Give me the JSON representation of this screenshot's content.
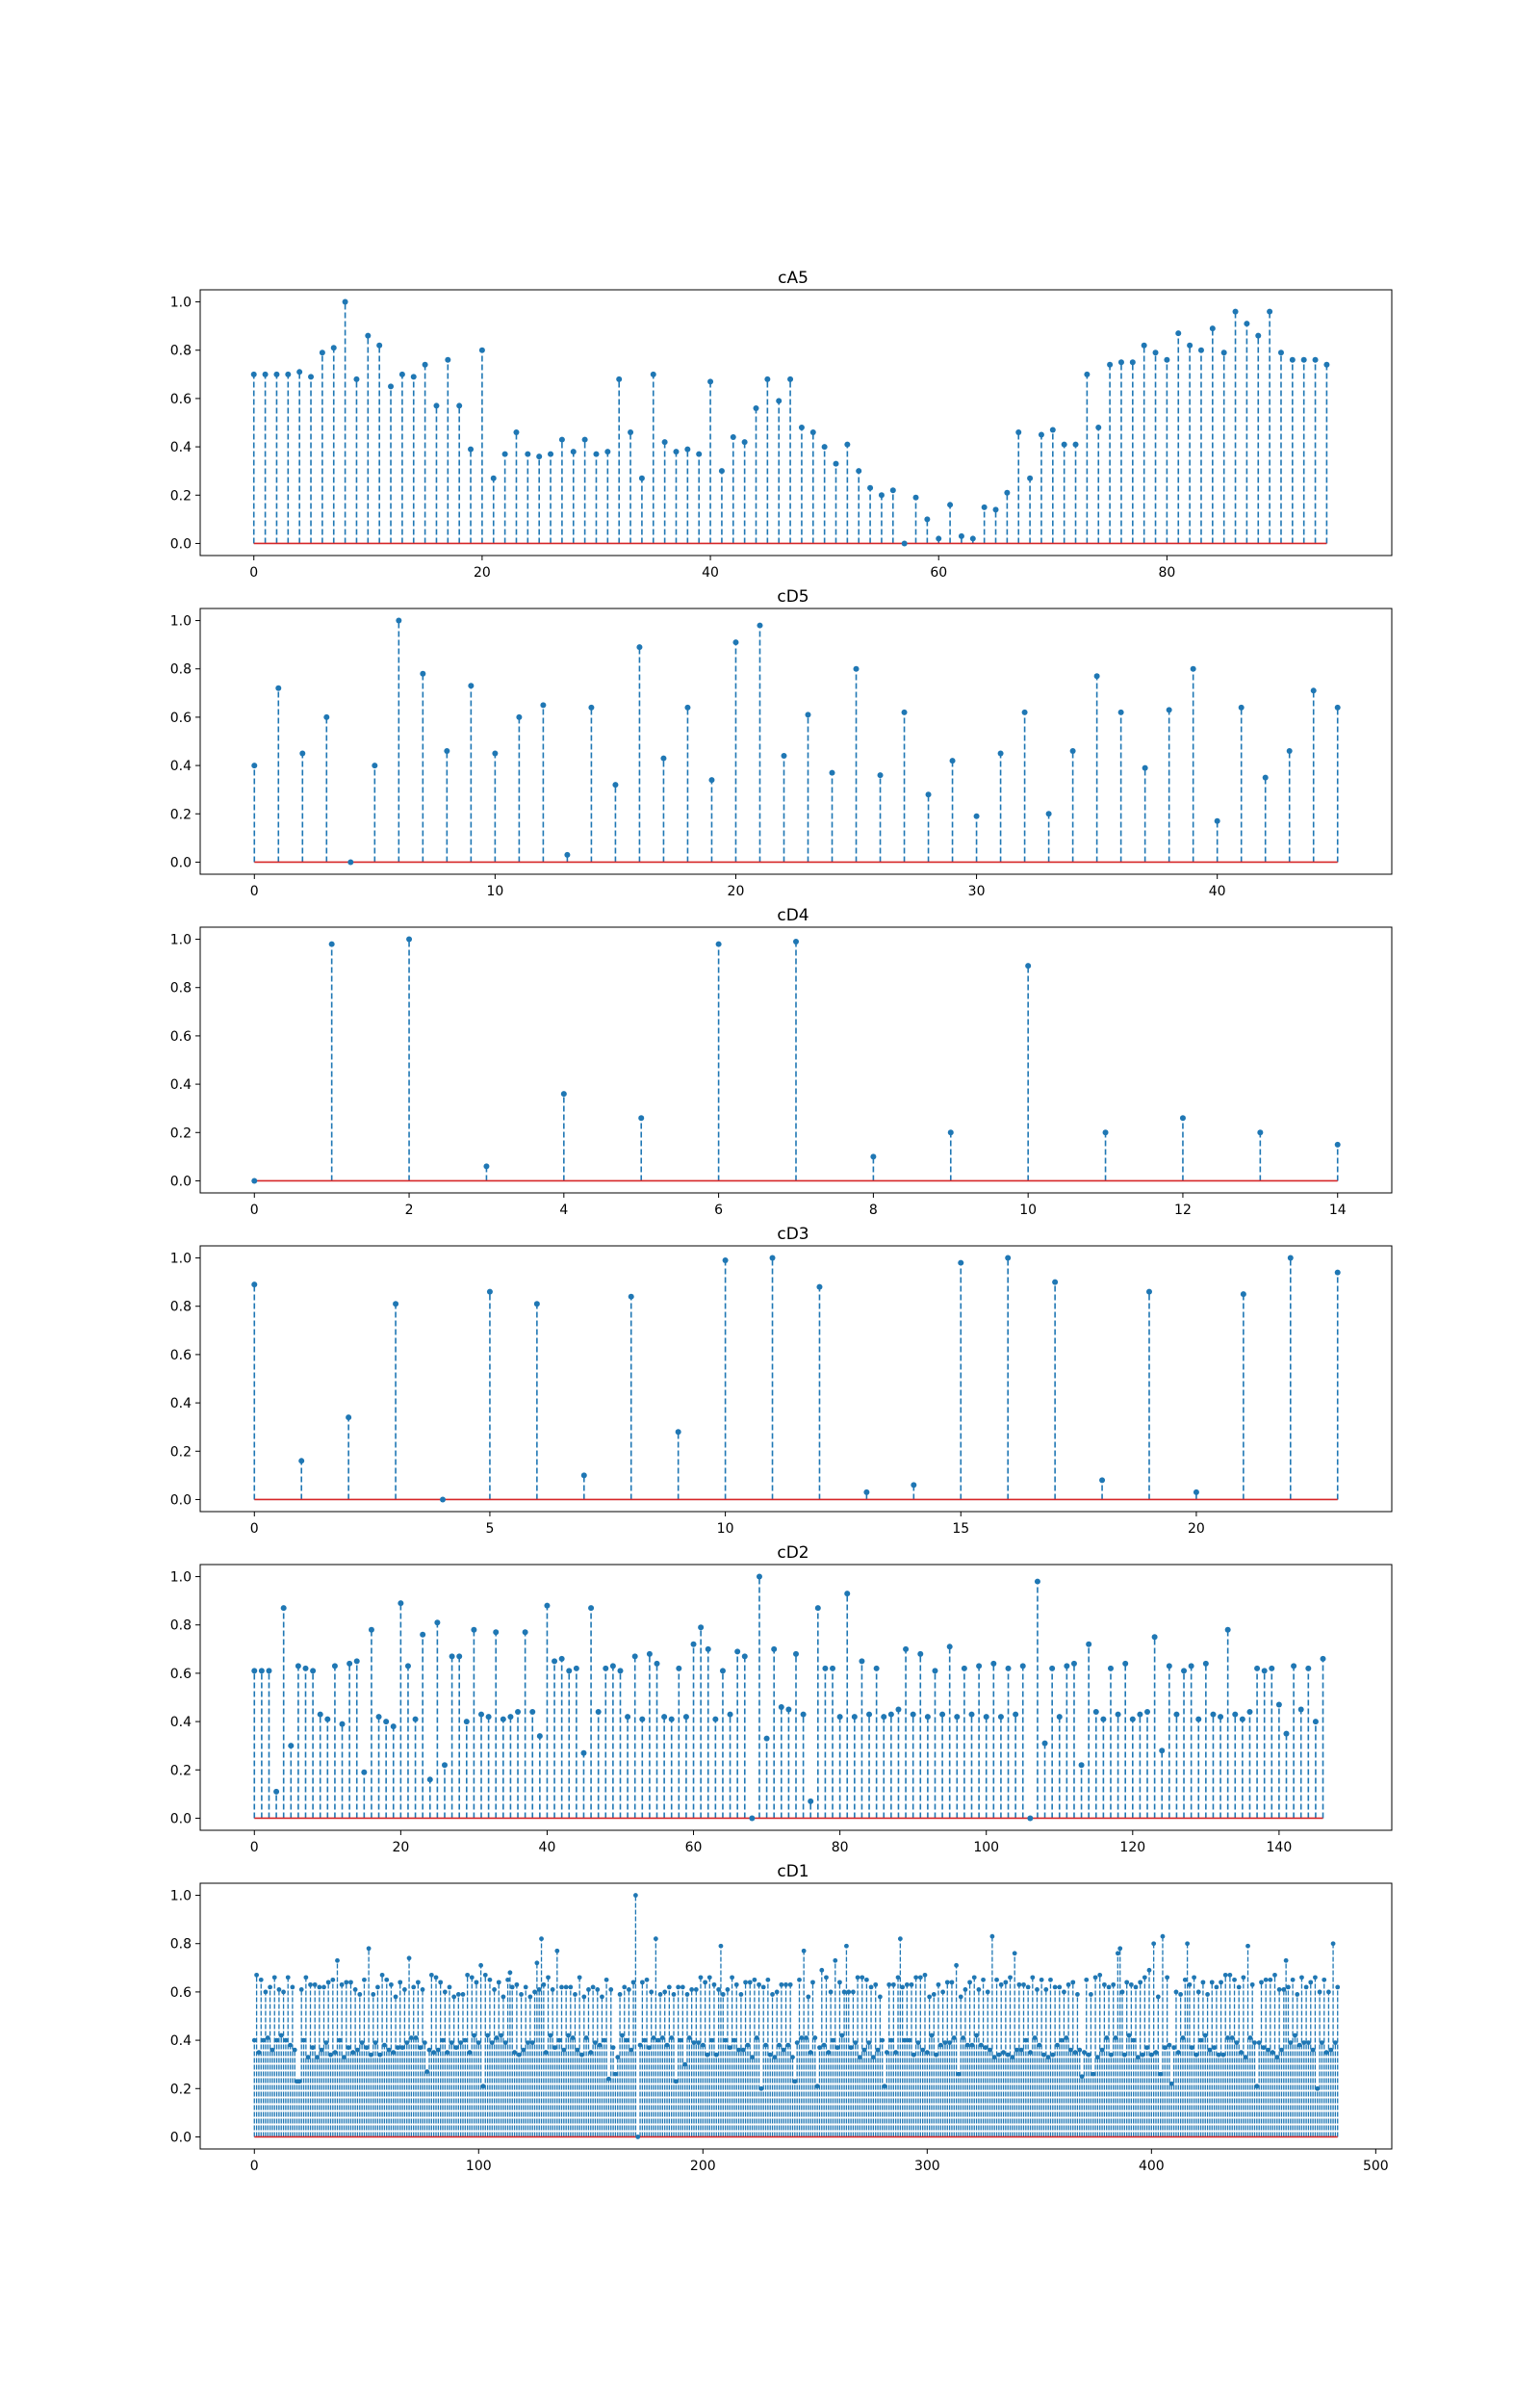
{
  "colors": {
    "stem": "#1f77b4",
    "baseline": "#d62728",
    "axes": "#000000",
    "background": "#ffffff"
  },
  "chart_data": [
    {
      "type": "stem",
      "title": "cA5",
      "xticks": [
        0,
        20,
        40,
        60,
        80
      ],
      "yticks": [
        "0.0",
        "0.2",
        "0.4",
        "0.6",
        "0.8",
        "1.0"
      ],
      "xlim": [
        -4.7,
        99.7
      ],
      "ylim": [
        -0.05,
        1.05
      ],
      "values": [
        0.7,
        0.7,
        0.7,
        0.7,
        0.71,
        0.69,
        0.79,
        0.81,
        1.0,
        0.68,
        0.86,
        0.82,
        0.65,
        0.7,
        0.69,
        0.74,
        0.57,
        0.76,
        0.57,
        0.39,
        0.8,
        0.27,
        0.37,
        0.46,
        0.37,
        0.36,
        0.37,
        0.43,
        0.38,
        0.43,
        0.37,
        0.38,
        0.68,
        0.46,
        0.27,
        0.7,
        0.42,
        0.38,
        0.39,
        0.37,
        0.67,
        0.3,
        0.44,
        0.42,
        0.56,
        0.68,
        0.59,
        0.68,
        0.48,
        0.46,
        0.4,
        0.33,
        0.41,
        0.3,
        0.23,
        0.2,
        0.22,
        0.0,
        0.19,
        0.1,
        0.02,
        0.16,
        0.03,
        0.02,
        0.15,
        0.14,
        0.21,
        0.46,
        0.27,
        0.45,
        0.47,
        0.41,
        0.41,
        0.7,
        0.48,
        0.74,
        0.75,
        0.75,
        0.82,
        0.79,
        0.76,
        0.87,
        0.82,
        0.8,
        0.89,
        0.79,
        0.96,
        0.91,
        0.86,
        0.96,
        0.79,
        0.76,
        0.76,
        0.76,
        0.74
      ]
    },
    {
      "type": "stem",
      "title": "cD5",
      "xticks": [
        0,
        10,
        20,
        30,
        40
      ],
      "yticks": [
        "0.0",
        "0.2",
        "0.4",
        "0.6",
        "0.8",
        "1.0"
      ],
      "xlim": [
        -2.25,
        47.25
      ],
      "ylim": [
        -0.05,
        1.05
      ],
      "values": [
        0.4,
        0.72,
        0.45,
        0.6,
        0.0,
        0.4,
        1.0,
        0.78,
        0.46,
        0.73,
        0.45,
        0.6,
        0.65,
        0.03,
        0.64,
        0.32,
        0.89,
        0.43,
        0.64,
        0.34,
        0.91,
        0.98,
        0.44,
        0.61,
        0.37,
        0.8,
        0.36,
        0.62,
        0.28,
        0.42,
        0.19,
        0.45,
        0.62,
        0.2,
        0.46,
        0.77,
        0.62,
        0.39,
        0.63,
        0.8,
        0.17,
        0.64,
        0.35,
        0.46,
        0.71,
        0.64
      ]
    },
    {
      "type": "stem",
      "title": "cD4",
      "xticks": [
        0,
        2,
        4,
        6,
        8,
        10,
        12,
        14
      ],
      "yticks": [
        "0.0",
        "0.2",
        "0.4",
        "0.6",
        "0.8",
        "1.0"
      ],
      "xlim": [
        -0.7,
        14.7
      ],
      "ylim": [
        -0.05,
        1.05
      ],
      "values": [
        0.0,
        0.98,
        1.0,
        0.06,
        0.36,
        0.26,
        0.98,
        0.99,
        0.1,
        0.2,
        0.89,
        0.2,
        0.26,
        0.2,
        0.15
      ]
    },
    {
      "type": "stem",
      "title": "cD3",
      "xticks": [
        0,
        5,
        10,
        15,
        20
      ],
      "yticks": [
        "0.0",
        "0.2",
        "0.4",
        "0.6",
        "0.8",
        "1.0"
      ],
      "xlim": [
        -1.15,
        24.15
      ],
      "ylim": [
        -0.05,
        1.05
      ],
      "values": [
        0.89,
        0.16,
        0.34,
        0.81,
        0.0,
        0.86,
        0.81,
        0.1,
        0.84,
        0.28,
        0.99,
        1.0,
        0.88,
        0.03,
        0.06,
        0.98,
        1.0,
        0.9,
        0.08,
        0.86,
        0.03,
        0.85,
        1.0,
        0.94
      ]
    },
    {
      "type": "stem",
      "title": "cD2",
      "xticks": [
        0,
        20,
        40,
        60,
        80,
        100,
        120,
        140
      ],
      "yticks": [
        "0.0",
        "0.2",
        "0.4",
        "0.6",
        "0.8",
        "1.0"
      ],
      "xlim": [
        -7.4,
        155.4
      ],
      "ylim": [
        -0.05,
        1.05
      ],
      "values": [
        0.61,
        0.61,
        0.61,
        0.11,
        0.87,
        0.3,
        0.63,
        0.62,
        0.61,
        0.43,
        0.41,
        0.63,
        0.39,
        0.64,
        0.65,
        0.19,
        0.78,
        0.42,
        0.4,
        0.38,
        0.89,
        0.63,
        0.41,
        0.76,
        0.16,
        0.81,
        0.22,
        0.67,
        0.67,
        0.4,
        0.78,
        0.43,
        0.42,
        0.77,
        0.41,
        0.42,
        0.44,
        0.77,
        0.44,
        0.34,
        0.88,
        0.65,
        0.66,
        0.61,
        0.62,
        0.27,
        0.87,
        0.44,
        0.62,
        0.63,
        0.61,
        0.42,
        0.67,
        0.41,
        0.68,
        0.64,
        0.42,
        0.41,
        0.62,
        0.42,
        0.72,
        0.79,
        0.7,
        0.41,
        0.61,
        0.43,
        0.69,
        0.67,
        0.0,
        1.0,
        0.33,
        0.7,
        0.46,
        0.45,
        0.68,
        0.43,
        0.07,
        0.87,
        0.62,
        0.62,
        0.42,
        0.93,
        0.42,
        0.65,
        0.43,
        0.62,
        0.42,
        0.43,
        0.45,
        0.7,
        0.43,
        0.68,
        0.42,
        0.61,
        0.43,
        0.71,
        0.42,
        0.62,
        0.43,
        0.63,
        0.42,
        0.64,
        0.42,
        0.62,
        0.43,
        0.63,
        0.0,
        0.98,
        0.31,
        0.62,
        0.42,
        0.63,
        0.64,
        0.22,
        0.72,
        0.44,
        0.41,
        0.62,
        0.43,
        0.64,
        0.41,
        0.43,
        0.44,
        0.75,
        0.28,
        0.63,
        0.43,
        0.61,
        0.63,
        0.41,
        0.64,
        0.43,
        0.42,
        0.78,
        0.43,
        0.41,
        0.44,
        0.62,
        0.61,
        0.62,
        0.47,
        0.35,
        0.63,
        0.45,
        0.62,
        0.4,
        0.66
      ]
    },
    {
      "type": "stem",
      "title": "cD1",
      "xticks": [
        0,
        100,
        200,
        300,
        400,
        500
      ],
      "yticks": [
        "0.0",
        "0.2",
        "0.4",
        "0.6",
        "0.8",
        "1.0"
      ],
      "xlim": [
        -24.15,
        507.15
      ],
      "ylim": [
        -0.05,
        1.05
      ]
    }
  ]
}
